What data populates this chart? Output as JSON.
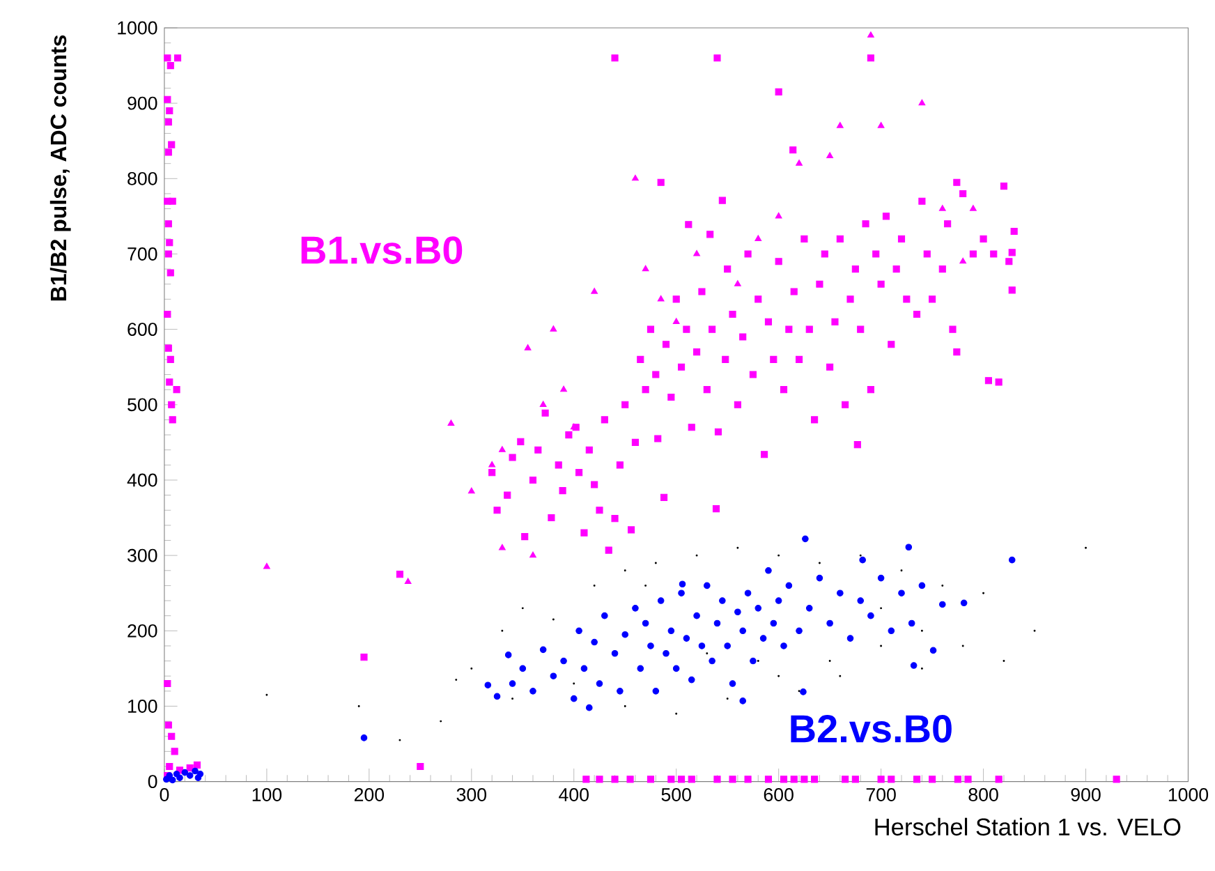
{
  "chart_data": {
    "type": "scatter",
    "xlabel": "Herschel Station 1 vs. VELO",
    "ylabel": "B1/B2 pulse, ADC counts",
    "xlim": [
      0,
      1000
    ],
    "ylim": [
      0,
      1000
    ],
    "xticks": [
      0,
      100,
      200,
      300,
      400,
      500,
      600,
      700,
      800,
      900,
      1000
    ],
    "yticks": [
      0,
      100,
      200,
      300,
      400,
      500,
      600,
      700,
      800,
      900,
      1000
    ],
    "series": [
      {
        "name": "B1.vs.B0",
        "color": "#ff00ff",
        "marker": "square",
        "x": [
          3,
          6,
          13,
          3,
          5,
          4,
          7,
          4,
          3,
          8,
          4,
          5,
          4,
          6,
          3,
          4,
          6,
          5,
          12,
          7,
          8,
          3,
          4,
          7,
          10,
          5,
          15,
          25,
          32,
          3,
          412,
          425,
          440,
          455,
          475,
          495,
          505,
          515,
          540,
          555,
          570,
          590,
          605,
          615,
          625,
          635,
          665,
          675,
          700,
          710,
          735,
          750,
          775,
          785,
          815,
          930,
          440,
          540,
          600,
          690,
          250,
          230,
          195,
          320,
          325,
          335,
          340,
          348,
          352,
          360,
          365,
          372,
          378,
          385,
          389,
          395,
          402,
          405,
          410,
          415,
          420,
          425,
          430,
          434,
          440,
          445,
          450,
          456,
          460,
          465,
          470,
          475,
          480,
          482,
          485,
          488,
          490,
          495,
          500,
          505,
          510,
          512,
          515,
          520,
          525,
          530,
          533,
          535,
          539,
          541,
          545,
          548,
          550,
          555,
          560,
          565,
          570,
          575,
          580,
          586,
          590,
          595,
          600,
          605,
          610,
          614,
          615,
          620,
          625,
          630,
          635,
          640,
          645,
          650,
          655,
          660,
          665,
          670,
          675,
          677,
          680,
          685,
          690,
          695,
          700,
          705,
          710,
          715,
          720,
          725,
          735,
          740,
          745,
          750,
          760,
          765,
          770,
          774,
          774,
          780,
          790,
          800,
          805,
          810,
          815,
          820,
          825,
          828,
          828,
          830
        ],
        "values": [
          960,
          950,
          960,
          905,
          890,
          875,
          845,
          835,
          770,
          770,
          740,
          715,
          700,
          675,
          620,
          575,
          560,
          530,
          520,
          500,
          480,
          130,
          75,
          60,
          40,
          20,
          15,
          18,
          22,
          8,
          3,
          3,
          3,
          3,
          3,
          3,
          3,
          3,
          3,
          3,
          3,
          3,
          3,
          3,
          3,
          3,
          3,
          3,
          3,
          3,
          3,
          3,
          3,
          3,
          3,
          3,
          960,
          960,
          915,
          960,
          20,
          275,
          165,
          410,
          360,
          380,
          430,
          451,
          325,
          400,
          440,
          489,
          350,
          420,
          386,
          460,
          470,
          410,
          330,
          440,
          394,
          360,
          480,
          307,
          349,
          420,
          500,
          334,
          450,
          560,
          520,
          600,
          540,
          455,
          795,
          377,
          580,
          510,
          640,
          550,
          600,
          739,
          470,
          570,
          650,
          520,
          726,
          600,
          362,
          464,
          771,
          560,
          680,
          620,
          500,
          590,
          700,
          540,
          640,
          434,
          610,
          560,
          690,
          520,
          600,
          838,
          650,
          560,
          720,
          600,
          480,
          660,
          700,
          550,
          610,
          720,
          500,
          640,
          680,
          447,
          600,
          740,
          520,
          700,
          660,
          750,
          580,
          680,
          720,
          640,
          620,
          770,
          700,
          640,
          680,
          740,
          600,
          570,
          795,
          780,
          700,
          720,
          532,
          700,
          530,
          790,
          690,
          652,
          702,
          730
        ]
      },
      {
        "color": "#ff00ff",
        "marker": "triangle",
        "x": [
          100,
          238,
          280,
          300,
          320,
          330,
          355,
          370,
          390,
          400,
          420,
          460,
          470,
          485,
          500,
          520,
          560,
          580,
          600,
          620,
          650,
          660,
          700,
          690,
          740,
          760,
          790,
          780,
          360,
          330,
          380
        ],
        "values": [
          285,
          265,
          475,
          385,
          420,
          440,
          575,
          500,
          520,
          470,
          650,
          800,
          680,
          640,
          610,
          700,
          660,
          720,
          750,
          820,
          830,
          870,
          870,
          990,
          900,
          760,
          760,
          690,
          300,
          310,
          600
        ]
      },
      {
        "name": "B2.vs.B0",
        "color": "#0000ff",
        "marker": "circle",
        "x": [
          2,
          5,
          8,
          12,
          15,
          20,
          25,
          30,
          35,
          33,
          195,
          626,
          828,
          316,
          325,
          336,
          415,
          565,
          506,
          682,
          727,
          781,
          751,
          732,
          624,
          340,
          350,
          360,
          370,
          380,
          390,
          400,
          405,
          410,
          420,
          425,
          430,
          440,
          445,
          450,
          460,
          465,
          470,
          475,
          480,
          485,
          490,
          495,
          500,
          505,
          510,
          515,
          520,
          525,
          530,
          535,
          540,
          545,
          550,
          555,
          560,
          565,
          570,
          575,
          580,
          585,
          590,
          595,
          600,
          605,
          610,
          620,
          630,
          640,
          650,
          660,
          670,
          680,
          690,
          700,
          710,
          720,
          730,
          740,
          760
        ],
        "values": [
          3,
          8,
          2,
          10,
          5,
          12,
          8,
          14,
          10,
          5,
          58,
          322,
          294,
          128,
          113,
          168,
          98,
          107,
          262,
          294,
          311,
          237,
          174,
          154,
          119,
          130,
          150,
          120,
          175,
          140,
          160,
          110,
          200,
          150,
          185,
          130,
          220,
          170,
          120,
          195,
          230,
          150,
          210,
          180,
          120,
          240,
          170,
          200,
          150,
          250,
          190,
          135,
          220,
          180,
          260,
          160,
          210,
          240,
          180,
          130,
          225,
          200,
          250,
          160,
          230,
          190,
          280,
          210,
          240,
          180,
          260,
          200,
          230,
          270,
          210,
          250,
          190,
          240,
          220,
          270,
          200,
          250,
          210,
          260,
          235
        ]
      },
      {
        "color": "#000000",
        "marker": "point",
        "x": [
          100,
          190,
          230,
          270,
          285,
          300,
          330,
          350,
          380,
          420,
          450,
          480,
          520,
          560,
          600,
          640,
          680,
          720,
          760,
          800,
          850,
          900,
          340,
          400,
          450,
          500,
          550,
          600,
          650,
          700,
          740,
          780,
          820,
          470,
          530,
          580,
          620,
          660,
          700,
          740
        ],
        "values": [
          115,
          100,
          55,
          80,
          135,
          150,
          200,
          230,
          215,
          260,
          280,
          290,
          300,
          310,
          300,
          290,
          300,
          280,
          260,
          250,
          200,
          310,
          110,
          130,
          100,
          90,
          110,
          140,
          160,
          180,
          200,
          180,
          160,
          260,
          170,
          160,
          120,
          140,
          230,
          150
        ]
      }
    ]
  }
}
